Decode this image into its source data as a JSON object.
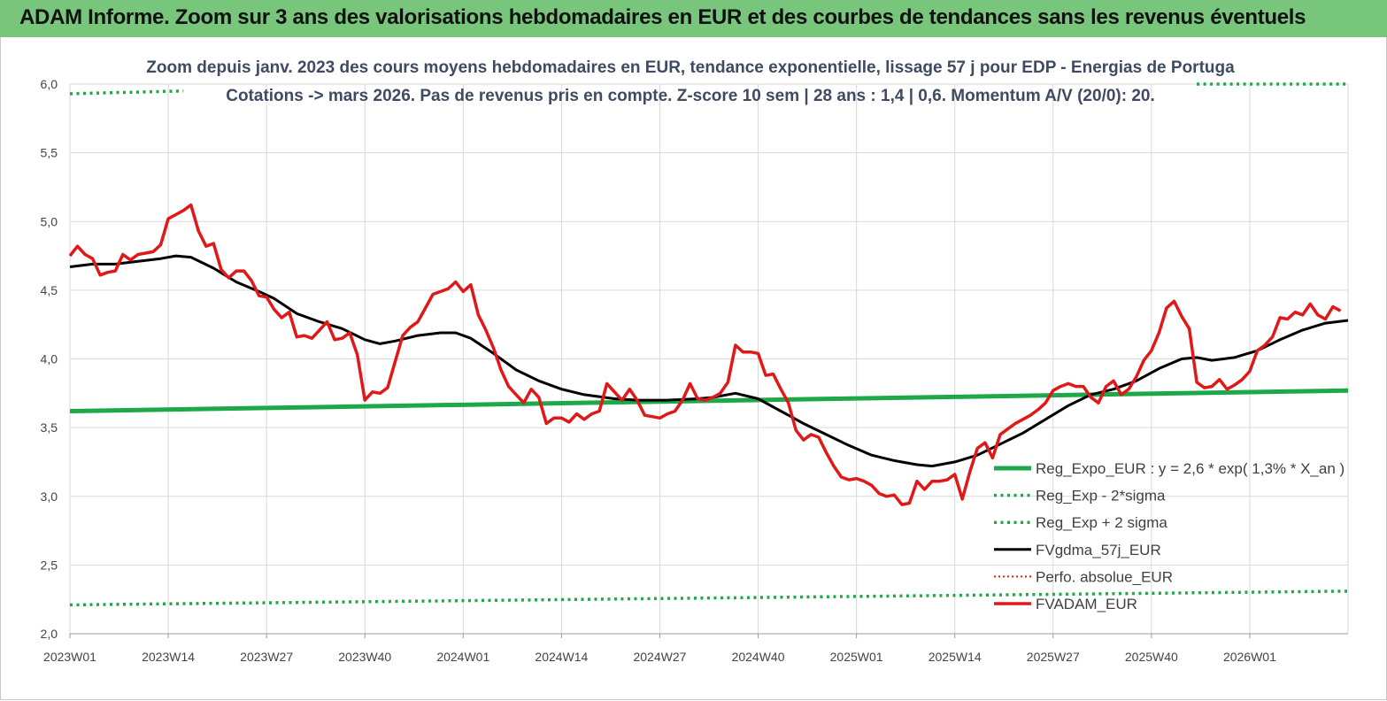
{
  "banner": {
    "title": "ADAM Informe. Zoom sur 3 ans des valorisations hebdomadaires en EUR et des courbes de tendances sans les revenus éventuels"
  },
  "chart_data": {
    "type": "line",
    "title": "Zoom depuis janv. 2023 des cours moyens hebdomadaires en EUR, tendance exponentielle, lissage 57 j pour EDP - Energias de Portuga",
    "subtitle": "Cotations -> mars 2026. Pas de revenus pris en compte. Z-score 10 sem | 28 ans : 1,4 | 0,6. Momentum A/V (20/0): 20.",
    "xlabel": "",
    "ylabel": "",
    "ylim": [
      2.0,
      6.0
    ],
    "yticks": [
      "2,0",
      "2,5",
      "3,0",
      "3,5",
      "4,0",
      "4,5",
      "5,0",
      "5,5",
      "6,0"
    ],
    "ytick_values": [
      2.0,
      2.5,
      3.0,
      3.5,
      4.0,
      4.5,
      5.0,
      5.5,
      6.0
    ],
    "xlim": [
      0,
      169
    ],
    "xticks": [
      "2023W01",
      "2023W14",
      "2023W27",
      "2023W40",
      "2024W01",
      "2024W14",
      "2024W27",
      "2024W40",
      "2025W01",
      "2025W14",
      "2025W27",
      "2025W40",
      "2026W01"
    ],
    "xtick_values": [
      0,
      13,
      26,
      39,
      52,
      65,
      78,
      91,
      104,
      117,
      130,
      143,
      156
    ],
    "grid": true,
    "legend_position": "bottom-right",
    "series": [
      {
        "name": "Reg_Expo_EUR : y = 2,6 * exp( 1,3% *  X_an )",
        "color": "#1fa84a",
        "style": "solid",
        "points": [
          [
            0,
            3.62
          ],
          [
            169,
            3.77
          ]
        ]
      },
      {
        "name": "Reg_Exp - 2*sigma",
        "color": "#1fa84a",
        "style": "dotted",
        "points": [
          [
            0,
            2.21
          ],
          [
            169,
            2.31
          ]
        ]
      },
      {
        "name": "Reg_Exp + 2 sigma",
        "color": "#1fa84a",
        "style": "dotted",
        "segments": [
          [
            [
              0,
              5.93
            ],
            [
              15,
              5.95
            ]
          ],
          [
            [
              149,
              6.0
            ],
            [
              169,
              6.0
            ]
          ]
        ]
      },
      {
        "name": "FVgdma_57j_EUR",
        "color": "#000000",
        "style": "solid",
        "points": [
          [
            0,
            4.67
          ],
          [
            3,
            4.69
          ],
          [
            6,
            4.69
          ],
          [
            9,
            4.71
          ],
          [
            12,
            4.73
          ],
          [
            14,
            4.75
          ],
          [
            16,
            4.74
          ],
          [
            19,
            4.66
          ],
          [
            22,
            4.56
          ],
          [
            25,
            4.49
          ],
          [
            27,
            4.44
          ],
          [
            30,
            4.33
          ],
          [
            33,
            4.27
          ],
          [
            36,
            4.22
          ],
          [
            39,
            4.14
          ],
          [
            41,
            4.11
          ],
          [
            43,
            4.13
          ],
          [
            46,
            4.17
          ],
          [
            49,
            4.19
          ],
          [
            51,
            4.19
          ],
          [
            53,
            4.15
          ],
          [
            56,
            4.04
          ],
          [
            59,
            3.92
          ],
          [
            62,
            3.84
          ],
          [
            65,
            3.78
          ],
          [
            68,
            3.74
          ],
          [
            72,
            3.71
          ],
          [
            75,
            3.7
          ],
          [
            79,
            3.7
          ],
          [
            83,
            3.71
          ],
          [
            85,
            3.72
          ],
          [
            88,
            3.75
          ],
          [
            91,
            3.71
          ],
          [
            94,
            3.62
          ],
          [
            97,
            3.53
          ],
          [
            100,
            3.45
          ],
          [
            103,
            3.37
          ],
          [
            106,
            3.3
          ],
          [
            109,
            3.26
          ],
          [
            112,
            3.23
          ],
          [
            114,
            3.22
          ],
          [
            117,
            3.25
          ],
          [
            120,
            3.3
          ],
          [
            123,
            3.38
          ],
          [
            126,
            3.46
          ],
          [
            129,
            3.56
          ],
          [
            132,
            3.66
          ],
          [
            135,
            3.74
          ],
          [
            138,
            3.78
          ],
          [
            141,
            3.84
          ],
          [
            144,
            3.93
          ],
          [
            147,
            4.0
          ],
          [
            149,
            4.01
          ],
          [
            151,
            3.99
          ],
          [
            154,
            4.01
          ],
          [
            157,
            4.06
          ],
          [
            160,
            4.14
          ],
          [
            163,
            4.21
          ],
          [
            166,
            4.26
          ],
          [
            169,
            4.28
          ]
        ]
      },
      {
        "name": "Perfo. absolue_EUR",
        "color": "#e01818",
        "style": "dotted",
        "points": []
      },
      {
        "name": "FVADAM_EUR",
        "color": "#e01818",
        "style": "solid",
        "points": [
          [
            0,
            4.75
          ],
          [
            1,
            4.82
          ],
          [
            2,
            4.76
          ],
          [
            3,
            4.73
          ],
          [
            4,
            4.61
          ],
          [
            5,
            4.63
          ],
          [
            6,
            4.64
          ],
          [
            7,
            4.76
          ],
          [
            8,
            4.72
          ],
          [
            9,
            4.76
          ],
          [
            10,
            4.77
          ],
          [
            11,
            4.78
          ],
          [
            12,
            4.83
          ],
          [
            13,
            5.02
          ],
          [
            14,
            5.05
          ],
          [
            15,
            5.08
          ],
          [
            16,
            5.12
          ],
          [
            17,
            4.93
          ],
          [
            18,
            4.82
          ],
          [
            19,
            4.84
          ],
          [
            20,
            4.65
          ],
          [
            21,
            4.59
          ],
          [
            22,
            4.64
          ],
          [
            23,
            4.64
          ],
          [
            24,
            4.57
          ],
          [
            25,
            4.46
          ],
          [
            26,
            4.45
          ],
          [
            27,
            4.36
          ],
          [
            28,
            4.3
          ],
          [
            29,
            4.34
          ],
          [
            30,
            4.16
          ],
          [
            31,
            4.17
          ],
          [
            32,
            4.15
          ],
          [
            33,
            4.21
          ],
          [
            34,
            4.27
          ],
          [
            35,
            4.14
          ],
          [
            36,
            4.15
          ],
          [
            37,
            4.19
          ],
          [
            38,
            4.03
          ],
          [
            39,
            3.7
          ],
          [
            40,
            3.76
          ],
          [
            41,
            3.75
          ],
          [
            42,
            3.79
          ],
          [
            43,
            3.98
          ],
          [
            44,
            4.17
          ],
          [
            45,
            4.23
          ],
          [
            46,
            4.27
          ],
          [
            47,
            4.37
          ],
          [
            48,
            4.47
          ],
          [
            49,
            4.49
          ],
          [
            50,
            4.51
          ],
          [
            51,
            4.56
          ],
          [
            52,
            4.49
          ],
          [
            53,
            4.54
          ],
          [
            54,
            4.32
          ],
          [
            55,
            4.21
          ],
          [
            56,
            4.08
          ],
          [
            57,
            3.92
          ],
          [
            58,
            3.8
          ],
          [
            59,
            3.74
          ],
          [
            60,
            3.68
          ],
          [
            61,
            3.78
          ],
          [
            62,
            3.72
          ],
          [
            63,
            3.53
          ],
          [
            64,
            3.57
          ],
          [
            65,
            3.57
          ],
          [
            66,
            3.54
          ],
          [
            67,
            3.6
          ],
          [
            68,
            3.56
          ],
          [
            69,
            3.6
          ],
          [
            70,
            3.62
          ],
          [
            71,
            3.82
          ],
          [
            72,
            3.76
          ],
          [
            73,
            3.7
          ],
          [
            74,
            3.78
          ],
          [
            75,
            3.7
          ],
          [
            76,
            3.59
          ],
          [
            77,
            3.58
          ],
          [
            78,
            3.57
          ],
          [
            79,
            3.6
          ],
          [
            80,
            3.62
          ],
          [
            81,
            3.7
          ],
          [
            82,
            3.82
          ],
          [
            83,
            3.71
          ],
          [
            84,
            3.7
          ],
          [
            85,
            3.72
          ],
          [
            86,
            3.75
          ],
          [
            87,
            3.83
          ],
          [
            88,
            4.1
          ],
          [
            89,
            4.05
          ],
          [
            90,
            4.05
          ],
          [
            91,
            4.04
          ],
          [
            92,
            3.88
          ],
          [
            93,
            3.89
          ],
          [
            94,
            3.78
          ],
          [
            95,
            3.68
          ],
          [
            96,
            3.48
          ],
          [
            97,
            3.41
          ],
          [
            98,
            3.45
          ],
          [
            99,
            3.43
          ],
          [
            100,
            3.32
          ],
          [
            101,
            3.22
          ],
          [
            102,
            3.14
          ],
          [
            103,
            3.12
          ],
          [
            104,
            3.13
          ],
          [
            105,
            3.11
          ],
          [
            106,
            3.08
          ],
          [
            107,
            3.02
          ],
          [
            108,
            3.0
          ],
          [
            109,
            3.01
          ],
          [
            110,
            2.94
          ],
          [
            111,
            2.95
          ],
          [
            112,
            3.11
          ],
          [
            113,
            3.05
          ],
          [
            114,
            3.11
          ],
          [
            115,
            3.11
          ],
          [
            116,
            3.12
          ],
          [
            117,
            3.16
          ],
          [
            118,
            2.98
          ],
          [
            119,
            3.18
          ],
          [
            120,
            3.35
          ],
          [
            121,
            3.39
          ],
          [
            122,
            3.28
          ],
          [
            123,
            3.45
          ],
          [
            124,
            3.49
          ],
          [
            125,
            3.53
          ],
          [
            126,
            3.56
          ],
          [
            127,
            3.59
          ],
          [
            128,
            3.63
          ],
          [
            129,
            3.68
          ],
          [
            130,
            3.77
          ],
          [
            131,
            3.8
          ],
          [
            132,
            3.82
          ],
          [
            133,
            3.8
          ],
          [
            134,
            3.8
          ],
          [
            135,
            3.72
          ],
          [
            136,
            3.68
          ],
          [
            137,
            3.8
          ],
          [
            138,
            3.84
          ],
          [
            139,
            3.74
          ],
          [
            140,
            3.78
          ],
          [
            141,
            3.87
          ],
          [
            142,
            3.99
          ],
          [
            143,
            4.06
          ],
          [
            144,
            4.19
          ],
          [
            145,
            4.37
          ],
          [
            146,
            4.42
          ],
          [
            147,
            4.31
          ],
          [
            148,
            4.22
          ],
          [
            149,
            3.83
          ],
          [
            150,
            3.79
          ],
          [
            151,
            3.8
          ],
          [
            152,
            3.85
          ],
          [
            153,
            3.78
          ],
          [
            154,
            3.81
          ],
          [
            155,
            3.85
          ],
          [
            156,
            3.91
          ],
          [
            157,
            4.06
          ],
          [
            158,
            4.1
          ],
          [
            159,
            4.16
          ],
          [
            160,
            4.3
          ],
          [
            161,
            4.29
          ],
          [
            162,
            4.34
          ],
          [
            163,
            4.32
          ],
          [
            164,
            4.4
          ],
          [
            165,
            4.32
          ],
          [
            166,
            4.29
          ],
          [
            167,
            4.38
          ],
          [
            168,
            4.35
          ]
        ]
      }
    ]
  }
}
